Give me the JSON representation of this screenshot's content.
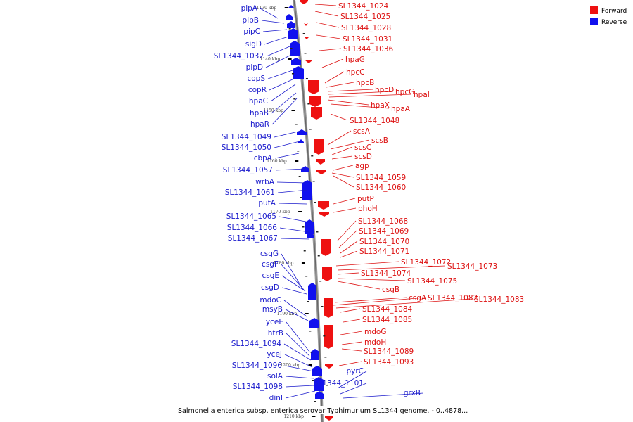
{
  "legend": [
    {
      "label": "Forward",
      "color": "#ee1111"
    },
    {
      "label": "Reverse",
      "color": "#1111ee"
    }
  ],
  "caption": "Salmonella enterica subsp. enterica serovar Typhimurium SL1344 genome. - 0..4878...",
  "ticks": [
    "1130 kbp",
    "1140 kbp",
    "1150 kbp",
    "1160 kbp",
    "1170 kbp",
    "1180 kbp",
    "1190 kbp",
    "1200 kbp",
    "1210 kbp"
  ],
  "reverse_genes": [
    "pipA",
    "pipB",
    "pipC",
    "sigD",
    "SL1344_1032",
    "pipD",
    "copS",
    "copR",
    "hpaC",
    "hpaB",
    "hpaR",
    "SL1344_1049",
    "SL1344_1050",
    "cbpA",
    "SL1344_1057",
    "wrbA",
    "SL1344_1061",
    "putA",
    "SL1344_1065",
    "SL1344_1066",
    "SL1344_1067",
    "csgG",
    "csgF",
    "csgE",
    "csgD",
    "mdoC",
    "msyB",
    "yceE",
    "htrB",
    "SL1344_1094",
    "yceJ",
    "SL1344_1096",
    "solA",
    "SL1344_1098",
    "dinI",
    "pyrC",
    "SL1344_1101",
    "grxB"
  ],
  "forward_genes": [
    "SL1344_1024",
    "SL1344_1025",
    "SL1344_1028",
    "SL1344_1031",
    "SL1344_1036",
    "hpaG",
    "hpcC",
    "hpcB",
    "hpcD",
    "hpcG",
    "hpaI",
    "hpaX",
    "hpaA",
    "SL1344_1048",
    "scsA",
    "scsB",
    "scsC",
    "scsD",
    "agp",
    "SL1344_1059",
    "SL1344_1060",
    "putP",
    "phoH",
    "SL1344_1068",
    "SL1344_1069",
    "SL1344_1070",
    "SL1344_1071",
    "SL1344_1072",
    "SL1344_1073",
    "SL1344_1074",
    "SL1344_1075",
    "csgB",
    "csgA",
    "SL1344_1082",
    "SL1344_1083",
    "SL1344_1084",
    "SL1344_1085",
    "mdoG",
    "mdoH",
    "SL1344_1089",
    "SL1344_1093"
  ]
}
